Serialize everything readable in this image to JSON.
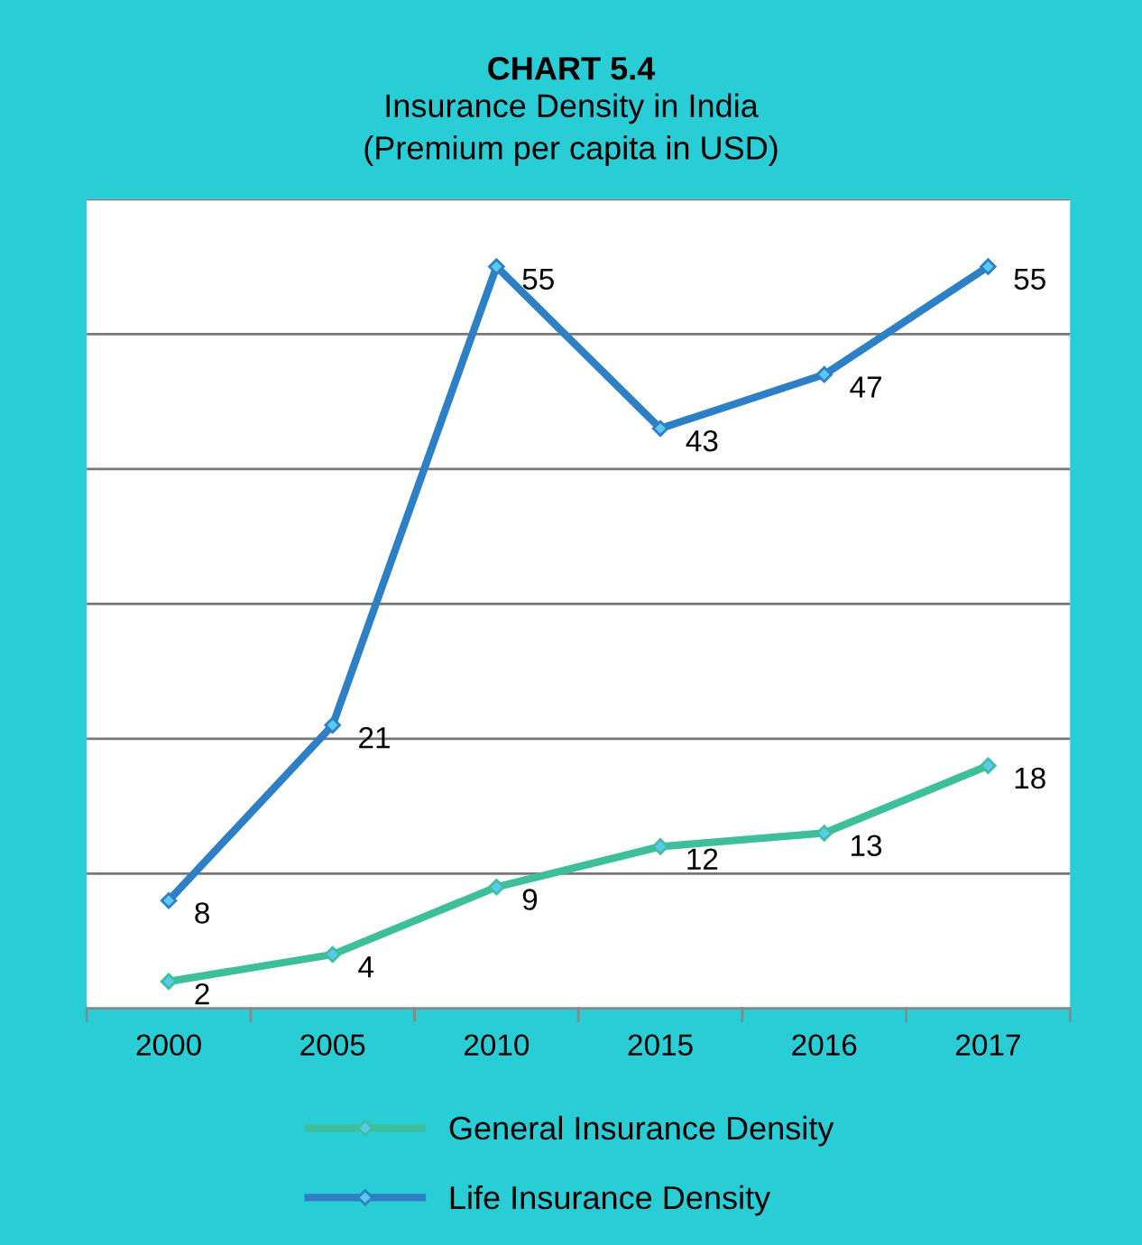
{
  "chart_data": {
    "type": "line",
    "title": "CHART 5.4",
    "subtitle": "Insurance Density in India\n(Premium per capita in USD)",
    "categories": [
      "2000",
      "2005",
      "2010",
      "2015",
      "2016",
      "2017"
    ],
    "series": [
      {
        "name": "General Insurance Density",
        "color": "#3dbf9c",
        "values": [
          2,
          4,
          9,
          12,
          13,
          18
        ]
      },
      {
        "name": "Life Insurance Density",
        "color": "#2e80c6",
        "values": [
          8,
          21,
          55,
          43,
          47,
          55
        ]
      }
    ],
    "ylim": [
      0,
      60
    ],
    "yticks": [
      {
        "value": 0,
        "label": null
      },
      {
        "value": 10,
        "label": null
      },
      {
        "value": 20,
        "label": null
      },
      {
        "value": 30,
        "label": null
      },
      {
        "value": 40,
        "label": null
      },
      {
        "value": 50,
        "label": null
      },
      {
        "value": 60,
        "label": null
      }
    ],
    "grid": "y",
    "legend": "bottom",
    "marker": "diamond",
    "line_style": "solid",
    "data_labels": true,
    "tick_labels": "x"
  }
}
